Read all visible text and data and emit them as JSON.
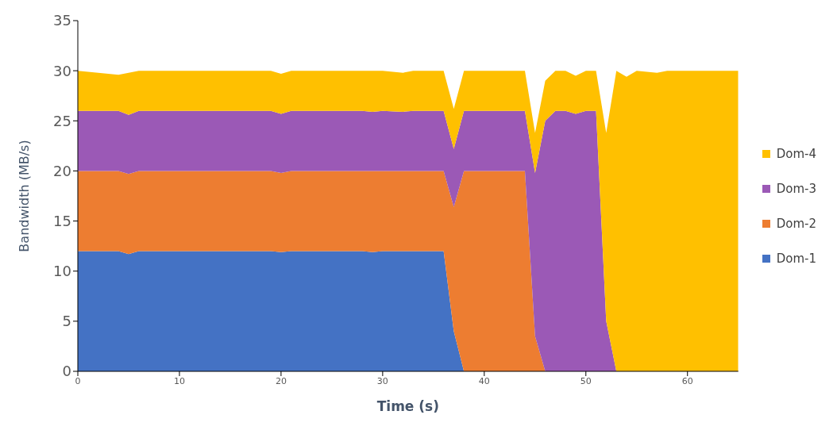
{
  "chart_data": {
    "type": "area",
    "stacked": true,
    "xlabel": "Time (s)",
    "ylabel": "Bandwidth (MB/s)",
    "x": [
      0,
      4,
      5,
      6,
      19,
      20,
      21,
      28,
      29,
      30,
      32,
      33,
      36,
      37,
      38,
      44,
      45,
      46,
      47,
      48,
      49,
      50,
      51,
      52,
      53,
      54,
      55,
      57,
      58,
      65
    ],
    "series": [
      {
        "name": "Dom-1",
        "color": "#4472c4",
        "values": [
          12,
          12,
          11.7,
          12,
          12,
          11.9,
          12,
          12,
          11.9,
          12,
          12,
          12,
          12,
          4,
          0,
          0,
          0,
          0,
          0,
          0,
          0,
          0,
          0,
          0,
          0,
          0,
          0,
          0,
          0,
          0
        ]
      },
      {
        "name": "Dom-2",
        "color": "#ed7d31",
        "values": [
          8,
          8,
          8,
          8,
          8,
          7.9,
          8,
          8,
          8.1,
          8,
          8,
          8,
          8,
          12.4,
          20,
          20,
          3.5,
          0,
          0,
          0,
          0,
          0,
          0,
          0,
          0,
          0,
          0,
          0,
          0,
          0
        ]
      },
      {
        "name": "Dom-3",
        "color": "#9b59b6",
        "values": [
          6,
          6,
          5.9,
          6,
          6,
          5.9,
          6,
          6,
          5.9,
          6,
          5.9,
          6,
          6,
          5.8,
          6,
          6,
          16.3,
          25,
          26,
          26,
          25.7,
          26,
          26,
          5,
          0,
          0,
          0,
          0,
          0,
          0
        ]
      },
      {
        "name": "Dom-4",
        "color": "#ffc000",
        "values": [
          4,
          3.6,
          4.2,
          4,
          4,
          4,
          4,
          4,
          4.1,
          4,
          3.9,
          4,
          4,
          4,
          4,
          4,
          4,
          4,
          4,
          4,
          3.8,
          4,
          4,
          18.8,
          30,
          29.4,
          30,
          29.8,
          30,
          30
        ]
      }
    ],
    "xlim": [
      0,
      65
    ],
    "xticks": [
      0,
      10,
      20,
      30,
      40,
      50,
      60
    ],
    "ylim": [
      0,
      35
    ],
    "yticks": [
      0,
      5,
      10,
      15,
      20,
      25,
      30,
      35
    ],
    "grid": false,
    "legend": "right"
  }
}
